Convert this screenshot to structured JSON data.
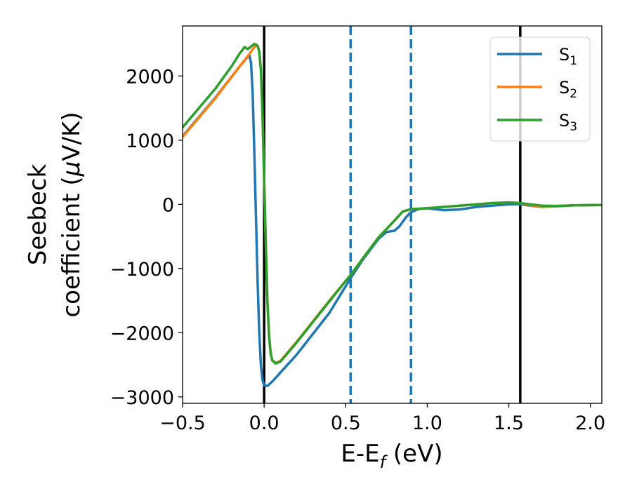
{
  "chart_data": {
    "type": "line",
    "xlabel": "E-E",
    "xlabel_sub": "f",
    "xlabel_unit": " (eV)",
    "ylabel_line1": "Seebeck",
    "ylabel_line2": "coefficient  (",
    "ylabel_mu": "μ",
    "ylabel_unit": "V/K)",
    "xlim": [
      -0.5,
      2.07
    ],
    "ylim": [
      -3100,
      2780
    ],
    "xticks": [
      {
        "v": -0.5,
        "label": "−0.5"
      },
      {
        "v": 0.0,
        "label": "0.0"
      },
      {
        "v": 0.5,
        "label": "0.5"
      },
      {
        "v": 1.0,
        "label": "1.0"
      },
      {
        "v": 1.5,
        "label": "1.5"
      },
      {
        "v": 2.0,
        "label": "2.0"
      }
    ],
    "yticks": [
      {
        "v": -3000,
        "label": "−3000"
      },
      {
        "v": -2000,
        "label": "−2000"
      },
      {
        "v": -1000,
        "label": "−1000"
      },
      {
        "v": 0,
        "label": "0"
      },
      {
        "v": 1000,
        "label": "1000"
      },
      {
        "v": 2000,
        "label": "2000"
      }
    ],
    "grid": false,
    "legend_position": "top-right",
    "vlines": [
      {
        "x": 0.0,
        "color": "#000000",
        "style": "solid"
      },
      {
        "x": 1.57,
        "color": "#000000",
        "style": "solid"
      },
      {
        "x": 0.53,
        "color": "#1f77b4",
        "style": "dashed"
      },
      {
        "x": 0.9,
        "color": "#1f77b4",
        "style": "dashed"
      }
    ],
    "series": [
      {
        "name": "S",
        "sub": "1",
        "color": "#1f77b4",
        "points": [
          [
            -0.5,
            1060
          ],
          [
            -0.3,
            1660
          ],
          [
            -0.15,
            2150
          ],
          [
            -0.1,
            2300
          ],
          [
            -0.09,
            2320
          ],
          [
            -0.08,
            2200
          ],
          [
            -0.07,
            1700
          ],
          [
            -0.06,
            800
          ],
          [
            -0.05,
            -200
          ],
          [
            -0.04,
            -1200
          ],
          [
            -0.03,
            -2000
          ],
          [
            -0.02,
            -2500
          ],
          [
            -0.01,
            -2740
          ],
          [
            0.0,
            -2820
          ],
          [
            0.02,
            -2830
          ],
          [
            0.05,
            -2760
          ],
          [
            0.2,
            -2340
          ],
          [
            0.4,
            -1690
          ],
          [
            0.53,
            -1150
          ],
          [
            0.6,
            -880
          ],
          [
            0.7,
            -540
          ],
          [
            0.75,
            -430
          ],
          [
            0.8,
            -410
          ],
          [
            0.83,
            -340
          ],
          [
            0.87,
            -200
          ],
          [
            0.9,
            -120
          ],
          [
            0.95,
            -70
          ],
          [
            1.0,
            -60
          ],
          [
            1.1,
            -90
          ],
          [
            1.2,
            -80
          ],
          [
            1.3,
            -40
          ],
          [
            1.4,
            -20
          ],
          [
            1.5,
            0
          ],
          [
            1.57,
            5
          ],
          [
            1.6,
            -10
          ],
          [
            1.7,
            -40
          ],
          [
            1.8,
            -25
          ],
          [
            1.9,
            -15
          ],
          [
            2.07,
            -10
          ]
        ]
      },
      {
        "name": "S",
        "sub": "2",
        "color": "#ff7f0e",
        "points": [
          [
            -0.5,
            1050
          ],
          [
            -0.3,
            1650
          ],
          [
            -0.15,
            2150
          ],
          [
            -0.1,
            2310
          ],
          [
            -0.08,
            2380
          ],
          [
            -0.06,
            2450
          ],
          [
            -0.05,
            2480
          ],
          [
            -0.04,
            2470
          ],
          [
            -0.03,
            2380
          ],
          [
            -0.02,
            2100
          ],
          [
            -0.01,
            1400
          ],
          [
            0.0,
            400
          ],
          [
            0.01,
            -600
          ],
          [
            0.02,
            -1500
          ],
          [
            0.03,
            -2050
          ],
          [
            0.04,
            -2320
          ],
          [
            0.05,
            -2430
          ],
          [
            0.07,
            -2470
          ],
          [
            0.1,
            -2440
          ],
          [
            0.2,
            -2140
          ],
          [
            0.4,
            -1500
          ],
          [
            0.53,
            -1100
          ],
          [
            0.6,
            -860
          ],
          [
            0.7,
            -520
          ],
          [
            0.8,
            -250
          ],
          [
            0.85,
            -110
          ],
          [
            0.9,
            -75
          ],
          [
            1.0,
            -60
          ],
          [
            1.1,
            -40
          ],
          [
            1.2,
            -20
          ],
          [
            1.3,
            0
          ],
          [
            1.4,
            20
          ],
          [
            1.5,
            30
          ],
          [
            1.57,
            20
          ],
          [
            1.6,
            0
          ],
          [
            1.7,
            -40
          ],
          [
            1.8,
            -30
          ],
          [
            1.9,
            -15
          ],
          [
            2.07,
            -10
          ]
        ]
      },
      {
        "name": "S",
        "sub": "3",
        "color": "#2ca02c",
        "points": [
          [
            -0.5,
            1200
          ],
          [
            -0.3,
            1800
          ],
          [
            -0.2,
            2150
          ],
          [
            -0.15,
            2350
          ],
          [
            -0.12,
            2450
          ],
          [
            -0.1,
            2420
          ],
          [
            -0.08,
            2460
          ],
          [
            -0.06,
            2500
          ],
          [
            -0.05,
            2490
          ],
          [
            -0.04,
            2470
          ],
          [
            -0.03,
            2380
          ],
          [
            -0.02,
            2100
          ],
          [
            -0.01,
            1400
          ],
          [
            0.0,
            400
          ],
          [
            0.01,
            -600
          ],
          [
            0.02,
            -1500
          ],
          [
            0.03,
            -2050
          ],
          [
            0.04,
            -2320
          ],
          [
            0.05,
            -2430
          ],
          [
            0.07,
            -2480
          ],
          [
            0.1,
            -2450
          ],
          [
            0.2,
            -2150
          ],
          [
            0.4,
            -1510
          ],
          [
            0.53,
            -1100
          ],
          [
            0.6,
            -860
          ],
          [
            0.7,
            -520
          ],
          [
            0.8,
            -250
          ],
          [
            0.85,
            -110
          ],
          [
            0.9,
            -75
          ],
          [
            1.0,
            -60
          ],
          [
            1.1,
            -40
          ],
          [
            1.2,
            -20
          ],
          [
            1.3,
            0
          ],
          [
            1.4,
            20
          ],
          [
            1.5,
            30
          ],
          [
            1.57,
            20
          ],
          [
            1.6,
            10
          ],
          [
            1.7,
            -20
          ],
          [
            1.8,
            -25
          ],
          [
            1.9,
            -15
          ],
          [
            2.07,
            -10
          ]
        ]
      }
    ]
  }
}
